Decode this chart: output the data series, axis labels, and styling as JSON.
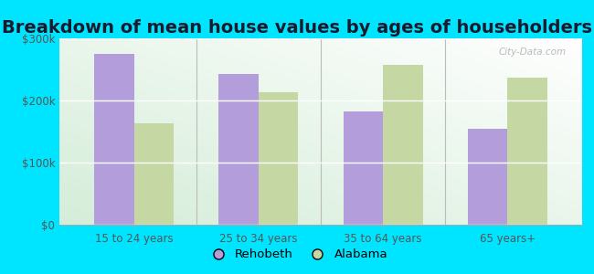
{
  "title": "Breakdown of mean house values by ages of householders",
  "categories": [
    "15 to 24 years",
    "25 to 34 years",
    "35 to 64 years",
    "65 years+"
  ],
  "rehobeth_values": [
    275000,
    242000,
    182000,
    155000
  ],
  "alabama_values": [
    163000,
    213000,
    258000,
    237000
  ],
  "rehobeth_color": "#b39ddb",
  "alabama_color": "#c5d8a4",
  "outer_background": "#00e5ff",
  "ylim": [
    0,
    300000
  ],
  "yticks": [
    0,
    100000,
    200000,
    300000
  ],
  "ytick_labels": [
    "$0",
    "$100k",
    "$200k",
    "$300k"
  ],
  "bar_width": 0.32,
  "legend_labels": [
    "Rehobeth",
    "Alabama"
  ],
  "watermark": "City-Data.com",
  "title_fontsize": 14,
  "tick_fontsize": 8.5,
  "legend_fontsize": 9.5
}
